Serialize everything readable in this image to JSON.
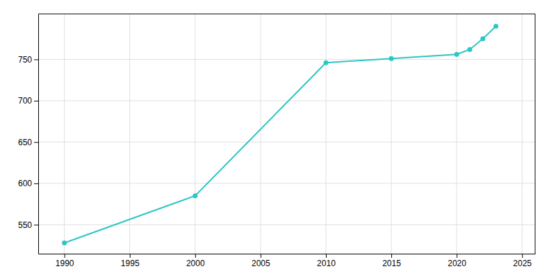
{
  "chart_data": {
    "type": "line",
    "x": [
      1990,
      2000,
      2010,
      2015,
      2020,
      2021,
      2022,
      2023
    ],
    "values": [
      528,
      585,
      746,
      751,
      756,
      762,
      775,
      790
    ],
    "color": "#2DC5C5",
    "marker": "circle",
    "xlim": [
      1988,
      2026
    ],
    "ylim": [
      515,
      805
    ],
    "xticks": [
      1990,
      1995,
      2000,
      2005,
      2010,
      2015,
      2020,
      2025
    ],
    "yticks": [
      550,
      600,
      650,
      700,
      750
    ],
    "grid": true
  }
}
